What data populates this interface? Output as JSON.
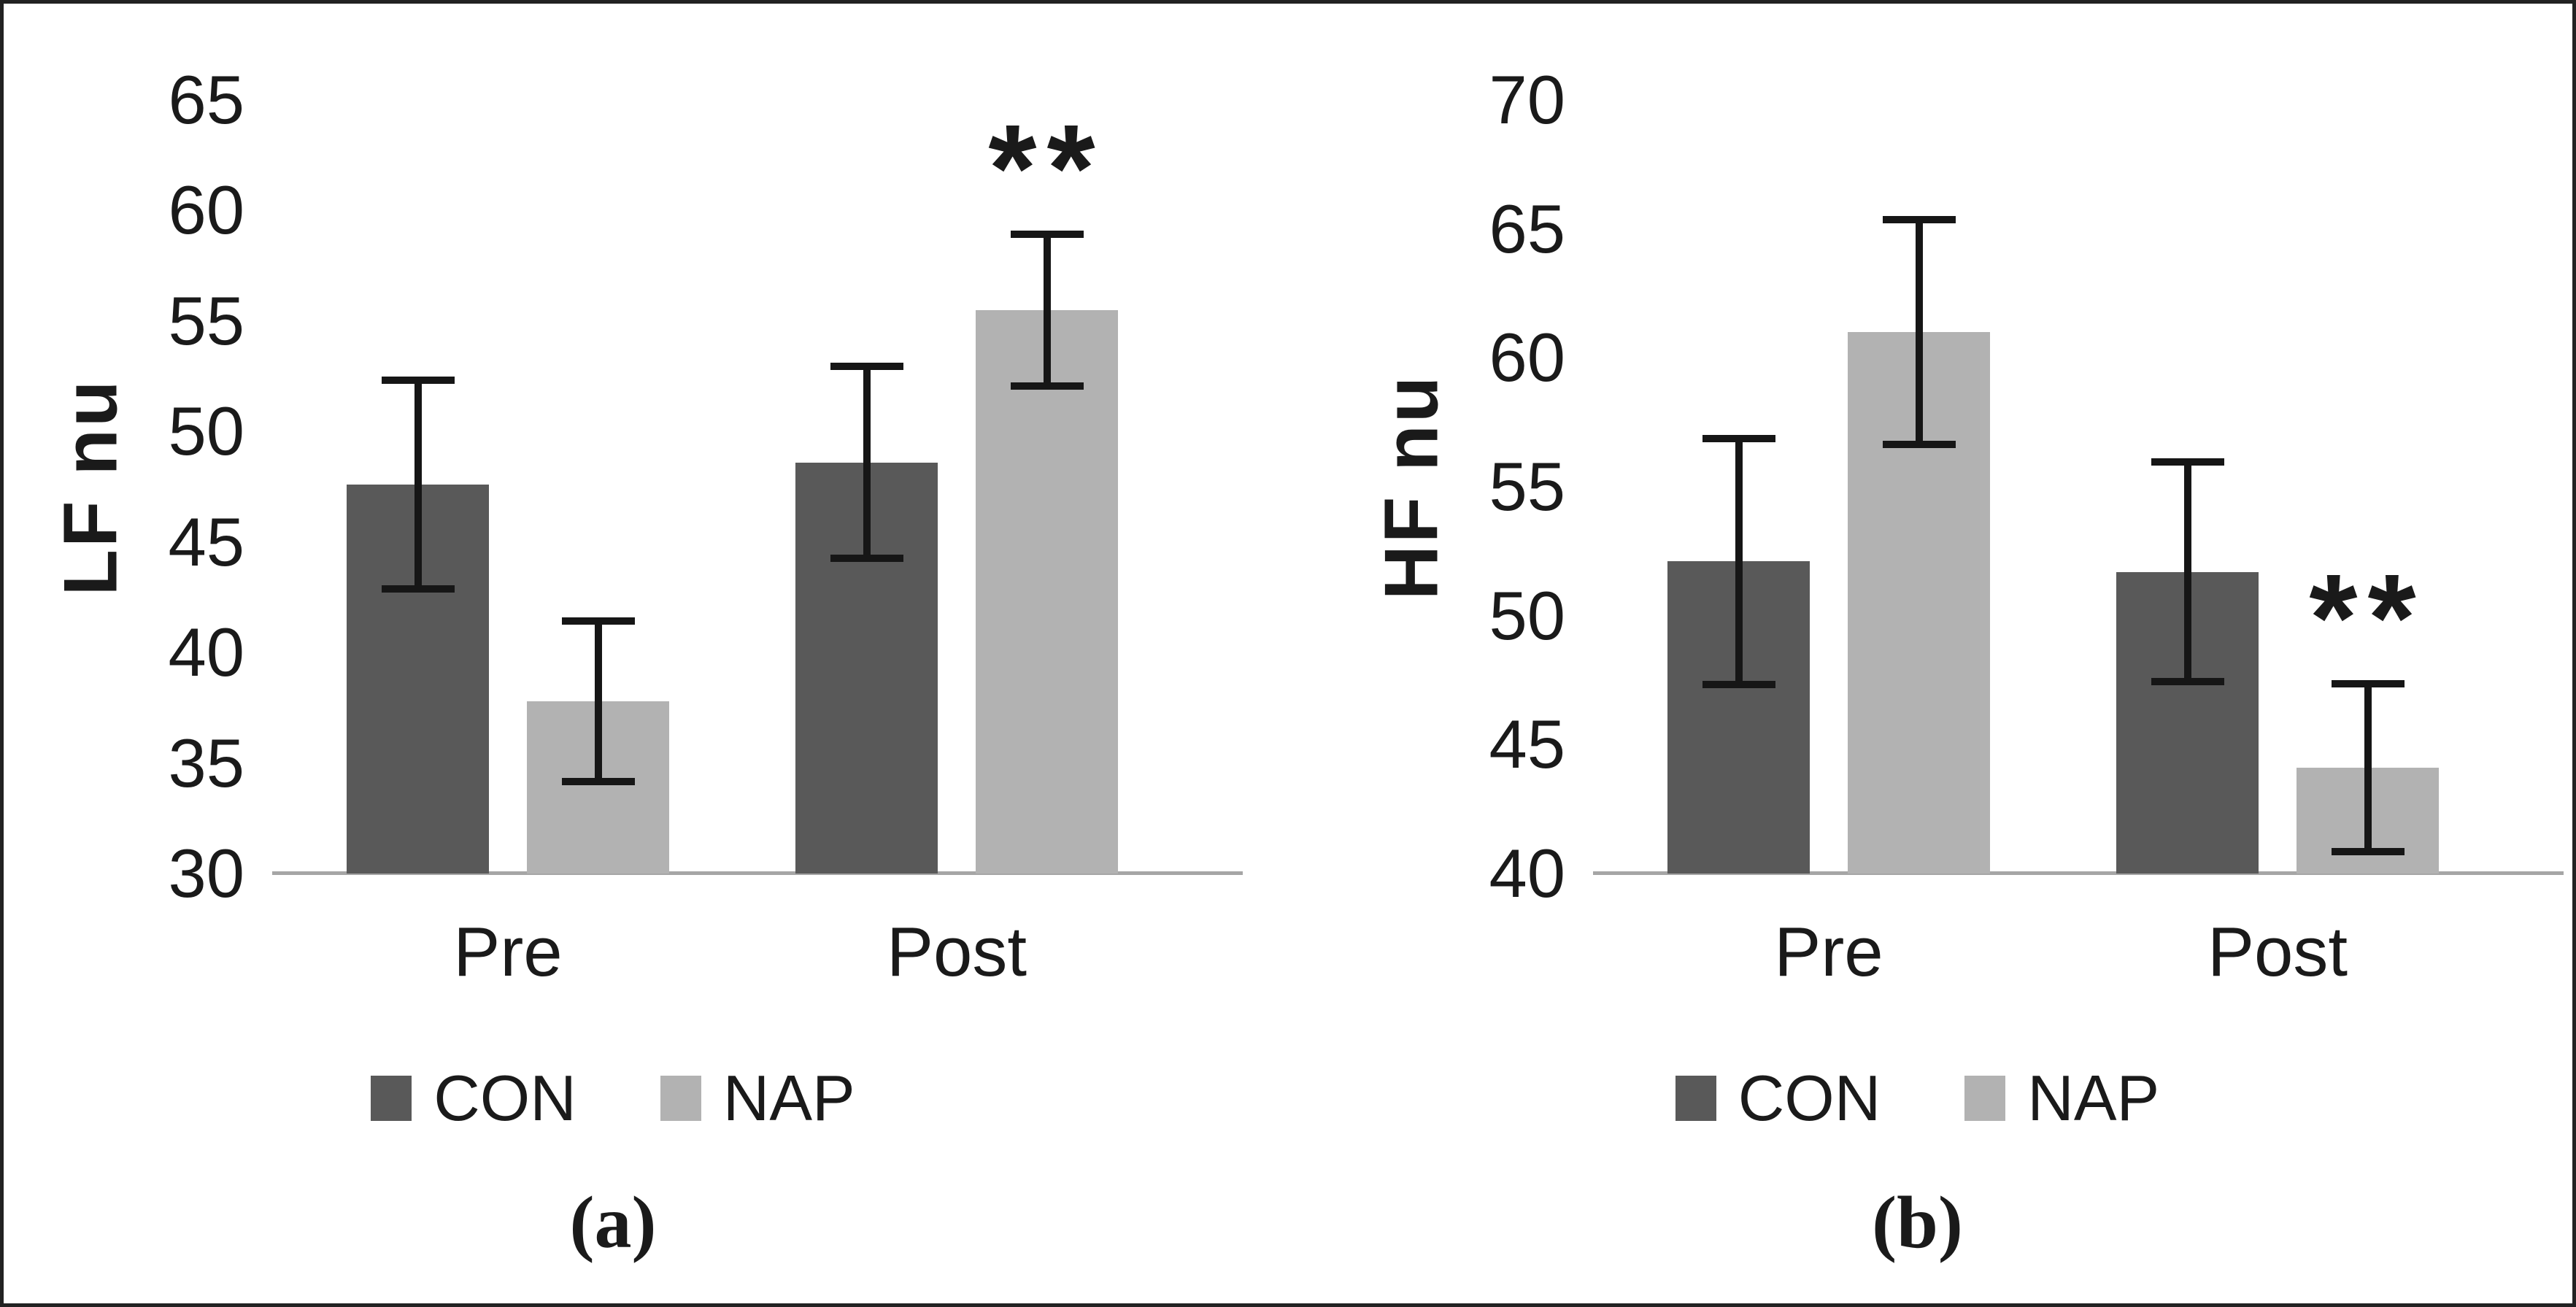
{
  "figure": {
    "description": "Two-panel grouped bar chart with error bars",
    "background": "#ffffff",
    "border_color": "#222222"
  },
  "colors": {
    "con_bar": "#595959",
    "nap_bar": "#b2b2b2",
    "error_bar": "#161616",
    "axis_line": "#a6a6a6",
    "text": "#1a1a1a"
  },
  "chart_data": [
    {
      "panel": "a",
      "type": "bar",
      "ylabel": "LF nu",
      "caption": "(a)",
      "categories": [
        "Pre",
        "Post"
      ],
      "ylim": [
        30,
        65
      ],
      "yticks": [
        65,
        60,
        55,
        50,
        45,
        40,
        35,
        30
      ],
      "grid": false,
      "legend_position": "bottom",
      "series": [
        {
          "name": "CON",
          "values": [
            47.6,
            48.6
          ],
          "errors": [
            4.9,
            4.5
          ]
        },
        {
          "name": "NAP",
          "values": [
            37.8,
            55.5
          ],
          "errors": [
            3.8,
            3.6
          ]
        }
      ],
      "significance": [
        {
          "category": "Post",
          "series": "NAP",
          "label": "**"
        }
      ]
    },
    {
      "panel": "b",
      "type": "bar",
      "ylabel": "HF nu",
      "caption": "(b)",
      "categories": [
        "Pre",
        "Post"
      ],
      "ylim": [
        40,
        70
      ],
      "yticks": [
        70,
        65,
        60,
        55,
        50,
        45,
        40
      ],
      "grid": false,
      "legend_position": "bottom",
      "series": [
        {
          "name": "CON",
          "values": [
            52.1,
            51.7
          ],
          "errors": [
            4.9,
            4.4
          ]
        },
        {
          "name": "NAP",
          "values": [
            61.0,
            44.1
          ],
          "errors": [
            4.5,
            3.4
          ]
        }
      ],
      "significance": [
        {
          "category": "Post",
          "series": "NAP",
          "label": "**"
        }
      ]
    }
  ]
}
